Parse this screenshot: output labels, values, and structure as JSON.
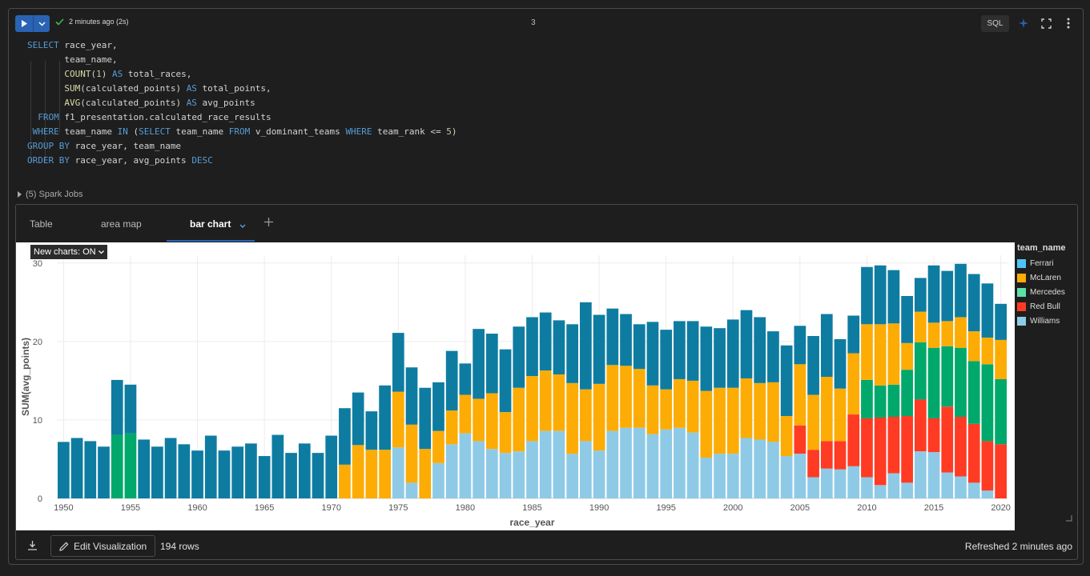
{
  "cell": {
    "status": "2 minutes ago (2s)",
    "number": "3",
    "language": "SQL",
    "spark_jobs": "(5) Spark Jobs"
  },
  "code_lines": [
    [
      [
        "kw",
        "SELECT"
      ],
      [
        "t",
        " race_year,"
      ]
    ],
    [
      [
        "t",
        "       team_name,"
      ]
    ],
    [
      [
        "t",
        "       "
      ],
      [
        "fn",
        "COUNT"
      ],
      [
        "t",
        "("
      ],
      [
        "num",
        "1"
      ],
      [
        "t",
        ") "
      ],
      [
        "kw",
        "AS"
      ],
      [
        "t",
        " total_races,"
      ]
    ],
    [
      [
        "t",
        "       "
      ],
      [
        "fn",
        "SUM"
      ],
      [
        "t",
        "(calculated_points) "
      ],
      [
        "kw",
        "AS"
      ],
      [
        "t",
        " total_points,"
      ]
    ],
    [
      [
        "t",
        "       "
      ],
      [
        "fn",
        "AVG"
      ],
      [
        "t",
        "(calculated_points) "
      ],
      [
        "kw",
        "AS"
      ],
      [
        "t",
        " avg_points"
      ]
    ],
    [
      [
        "t",
        "  "
      ],
      [
        "kw",
        "FROM"
      ],
      [
        "t",
        " f1_presentation.calculated_race_results"
      ]
    ],
    [
      [
        "t",
        " "
      ],
      [
        "kw",
        "WHERE"
      ],
      [
        "t",
        " team_name "
      ],
      [
        "kw",
        "IN"
      ],
      [
        "t",
        " ("
      ],
      [
        "kw",
        "SELECT"
      ],
      [
        "t",
        " team_name "
      ],
      [
        "kw",
        "FROM"
      ],
      [
        "t",
        " v_dominant_teams "
      ],
      [
        "kw",
        "WHERE"
      ],
      [
        "t",
        " team_rank <= "
      ],
      [
        "num",
        "5"
      ],
      [
        "t",
        ")"
      ]
    ],
    [
      [
        "kw",
        "GROUP BY"
      ],
      [
        "t",
        " race_year, team_name"
      ]
    ],
    [
      [
        "kw",
        "ORDER BY"
      ],
      [
        "t",
        " race_year, avg_points "
      ],
      [
        "kw",
        "DESC"
      ]
    ]
  ],
  "tabs": {
    "table": "Table",
    "area_map": "area map",
    "bar_chart": "bar chart"
  },
  "new_charts_label": "New charts: ON",
  "footer": {
    "edit_label": "Edit Visualization",
    "rows": "194 rows",
    "refreshed": "Refreshed 2 minutes ago"
  },
  "chart_data": {
    "type": "bar",
    "stacked": true,
    "xlabel": "race_year",
    "ylabel": "SUM(avg_points)",
    "ylim": [
      0,
      31
    ],
    "yticks": [
      0,
      10,
      20,
      30
    ],
    "xticks": [
      1950,
      1955,
      1960,
      1965,
      1970,
      1975,
      1980,
      1985,
      1990,
      1995,
      2000,
      2005,
      2010,
      2015,
      2020
    ],
    "legend_title": "team_name",
    "legend_position": "right",
    "grid": true,
    "x": [
      1950,
      1951,
      1952,
      1953,
      1954,
      1955,
      1956,
      1957,
      1958,
      1959,
      1960,
      1961,
      1962,
      1963,
      1964,
      1965,
      1966,
      1967,
      1968,
      1969,
      1970,
      1971,
      1972,
      1973,
      1974,
      1975,
      1976,
      1977,
      1978,
      1979,
      1980,
      1981,
      1982,
      1983,
      1984,
      1985,
      1986,
      1987,
      1988,
      1989,
      1990,
      1991,
      1992,
      1993,
      1994,
      1995,
      1996,
      1997,
      1998,
      1999,
      2000,
      2001,
      2002,
      2003,
      2004,
      2005,
      2006,
      2007,
      2008,
      2009,
      2010,
      2011,
      2012,
      2013,
      2014,
      2015,
      2016,
      2017,
      2018,
      2019,
      2020
    ],
    "series": [
      {
        "name": "Williams",
        "color": "#8ecae6",
        "values": [
          0,
          0,
          0,
          0,
          0,
          0,
          0,
          0,
          0,
          0,
          0,
          0,
          0,
          0,
          0,
          0,
          0,
          0,
          0,
          0,
          0,
          0,
          0,
          0,
          0,
          6.5,
          2,
          0,
          4.5,
          6.9,
          8.3,
          7.3,
          6.3,
          5.8,
          6,
          7.3,
          8.6,
          8.6,
          5.7,
          7.3,
          6.1,
          8.6,
          9,
          9,
          8.2,
          8.8,
          9,
          8.4,
          5.2,
          5.7,
          5.7,
          7.7,
          7.5,
          7.2,
          5.4,
          5.7,
          2.7,
          3.8,
          3.7,
          4.1,
          2.7,
          1.7,
          3.2,
          2,
          6,
          5.9,
          3.3,
          2.8,
          2,
          1,
          0
        ]
      },
      {
        "name": "Ferrari",
        "color": "#1b8ccd",
        "values": [
          0,
          0,
          0,
          0,
          0,
          0,
          0,
          0,
          0,
          0,
          0,
          0,
          0,
          0,
          0,
          0,
          0,
          0,
          0,
          0,
          0,
          0,
          0,
          0,
          0,
          0,
          0,
          0,
          0,
          0,
          0,
          0,
          0,
          0,
          0,
          0,
          0,
          0,
          0,
          0,
          0,
          0,
          0,
          0,
          0,
          0,
          0,
          0,
          0,
          0,
          0,
          0,
          0,
          0,
          0,
          0,
          0,
          0,
          0,
          0,
          0,
          0,
          0,
          0,
          0,
          0,
          0,
          0,
          0,
          0,
          0
        ]
      },
      {
        "name": "Red Bull",
        "color": "#ff3b24",
        "values": [
          0,
          0,
          0,
          0,
          0,
          0,
          0,
          0,
          0,
          0,
          0,
          0,
          0,
          0,
          0,
          0,
          0,
          0,
          0,
          0,
          0,
          0,
          0,
          0,
          0,
          0,
          0,
          0,
          0,
          0,
          0,
          0,
          0,
          0,
          0,
          0,
          0,
          0,
          0,
          0,
          0,
          0,
          0,
          0,
          0,
          0,
          0,
          0,
          0,
          0,
          0,
          0,
          0,
          0,
          0,
          3.6,
          3.5,
          3.5,
          3.6,
          6.6,
          7.5,
          8.6,
          7.2,
          8.5,
          6.6,
          4.3,
          8.4,
          7.6,
          7.5,
          6.3,
          6.9
        ]
      },
      {
        "name": "Mercedes",
        "color": "#00a86b",
        "values": [
          0,
          0,
          0,
          0,
          8.1,
          8.3,
          0,
          0,
          0,
          0,
          0,
          0,
          0,
          0,
          0,
          0,
          0,
          0,
          0,
          0,
          0,
          0,
          0,
          0,
          0,
          0,
          0,
          0,
          0,
          0,
          0,
          0,
          0,
          0,
          0,
          0,
          0,
          0,
          0,
          0,
          0,
          0,
          0,
          0,
          0,
          0,
          0,
          0,
          0,
          0,
          0,
          0,
          0,
          0,
          0,
          0,
          0,
          0,
          0,
          0,
          4.9,
          4.1,
          4.1,
          5.9,
          7.3,
          9,
          7.7,
          8.8,
          8,
          9.8,
          8.3
        ]
      },
      {
        "name": "McLaren",
        "color": "#fcac04",
        "values": [
          0,
          0,
          0,
          0,
          0,
          0,
          0,
          0,
          0,
          0,
          0,
          0,
          0,
          0,
          0,
          0,
          0,
          0,
          0,
          0,
          0,
          4.3,
          6.8,
          6.2,
          6.2,
          7.1,
          7.4,
          6.3,
          4.1,
          4.3,
          4.9,
          5.4,
          7.1,
          5.2,
          8.1,
          8.3,
          7.7,
          7.2,
          9,
          6.6,
          8.5,
          8.4,
          7.9,
          7.5,
          6.2,
          5.1,
          6.2,
          6.6,
          8.5,
          8.4,
          8.4,
          7.6,
          7.2,
          7.6,
          5.1,
          7.8,
          7,
          8.2,
          6.7,
          7.8,
          7.1,
          7.8,
          7.8,
          3.4,
          3.9,
          3.2,
          3.2,
          3.9,
          3.8,
          3.4,
          5
        ]
      },
      {
        "name": "Ferrari",
        "color": "#0e7ca1",
        "values": [
          7.2,
          7.7,
          7.3,
          6.6,
          7,
          6.2,
          7.5,
          6.6,
          7.7,
          6.9,
          6.1,
          8,
          6.1,
          6.6,
          7,
          5.4,
          8.1,
          5.8,
          7,
          5.8,
          8,
          7.2,
          6.7,
          4.9,
          8.2,
          7.5,
          7.3,
          7.8,
          6.2,
          7.6,
          4,
          8.9,
          7.6,
          8,
          7.8,
          7.5,
          7.4,
          6.9,
          7.5,
          11.1,
          8.8,
          7.2,
          6.6,
          5.7,
          8.1,
          7.6,
          7.4,
          7.6,
          8.2,
          7.6,
          8.7,
          8.7,
          8.4,
          6.5,
          9,
          4.9,
          7.5,
          8,
          6.3,
          4.8,
          7.3,
          7.5,
          6.8,
          6,
          4.3,
          7.3,
          6.4,
          6.8,
          7.3,
          6.9,
          4.6
        ]
      }
    ]
  }
}
